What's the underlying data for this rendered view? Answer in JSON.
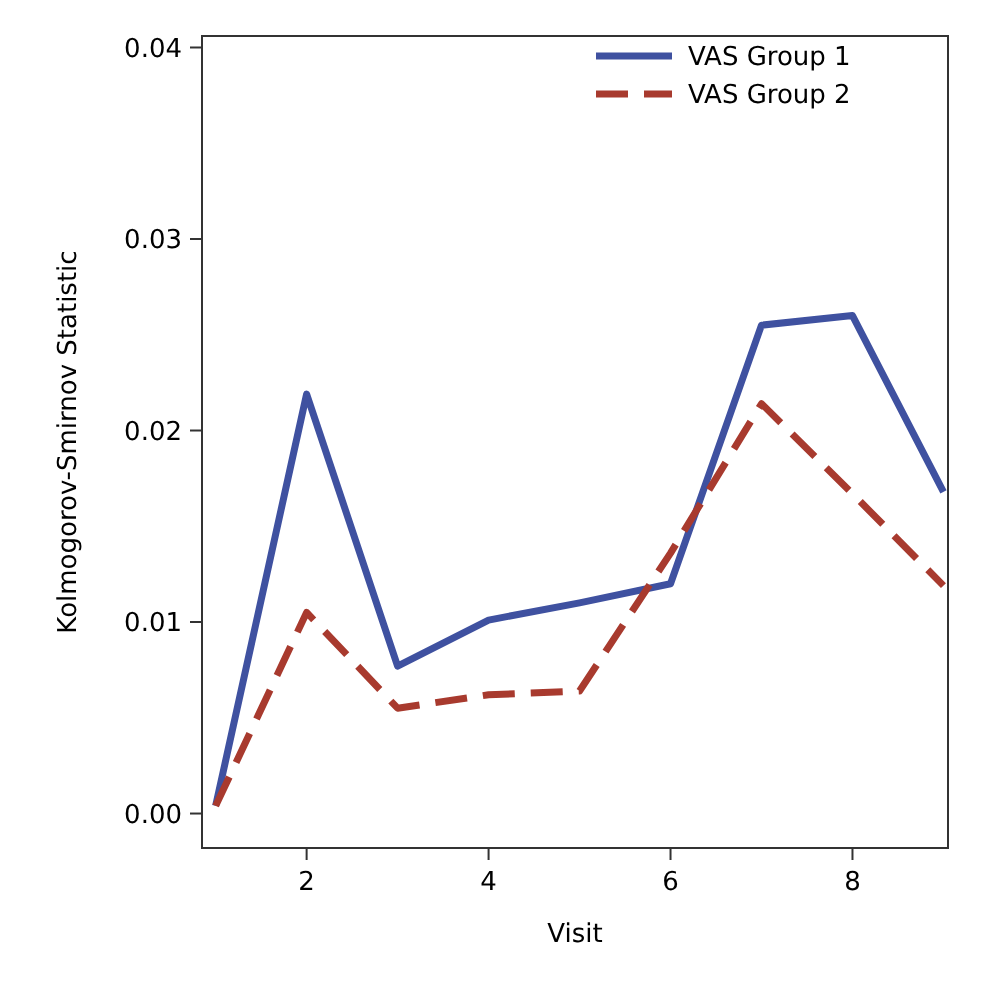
{
  "chart_data": {
    "type": "line",
    "xlabel": "Visit",
    "ylabel": "Kolmogorov-Smirnov Statistic",
    "x": [
      1,
      2,
      3,
      4,
      5,
      6,
      7,
      8,
      9
    ],
    "series": [
      {
        "name": "VAS Group 1",
        "color": "#3f51a0",
        "line_style": "solid",
        "values": [
          0.0004,
          0.0219,
          0.0077,
          0.0101,
          0.011,
          0.012,
          0.0255,
          0.026,
          0.0168
        ]
      },
      {
        "name": "VAS Group 2",
        "color": "#a83a2e",
        "line_style": "dashed",
        "values": [
          0.0004,
          0.0105,
          0.0055,
          0.0062,
          0.0064,
          0.0136,
          0.0214,
          0.0167,
          0.0119
        ]
      }
    ],
    "xlim": [
      0.85,
      9.05
    ],
    "xticks": [
      2,
      4,
      6,
      8
    ],
    "ylim": [
      -0.0018,
      0.0406
    ],
    "yticks": [
      {
        "value": 0,
        "label": "0.00"
      },
      {
        "value": 0.01,
        "label": "0.01"
      },
      {
        "value": 0.02,
        "label": "0.02"
      },
      {
        "value": 0.03,
        "label": "0.03"
      },
      {
        "value": 0.04,
        "label": "0.04"
      }
    ],
    "grid": false,
    "legend": "top right",
    "marker": "none"
  }
}
